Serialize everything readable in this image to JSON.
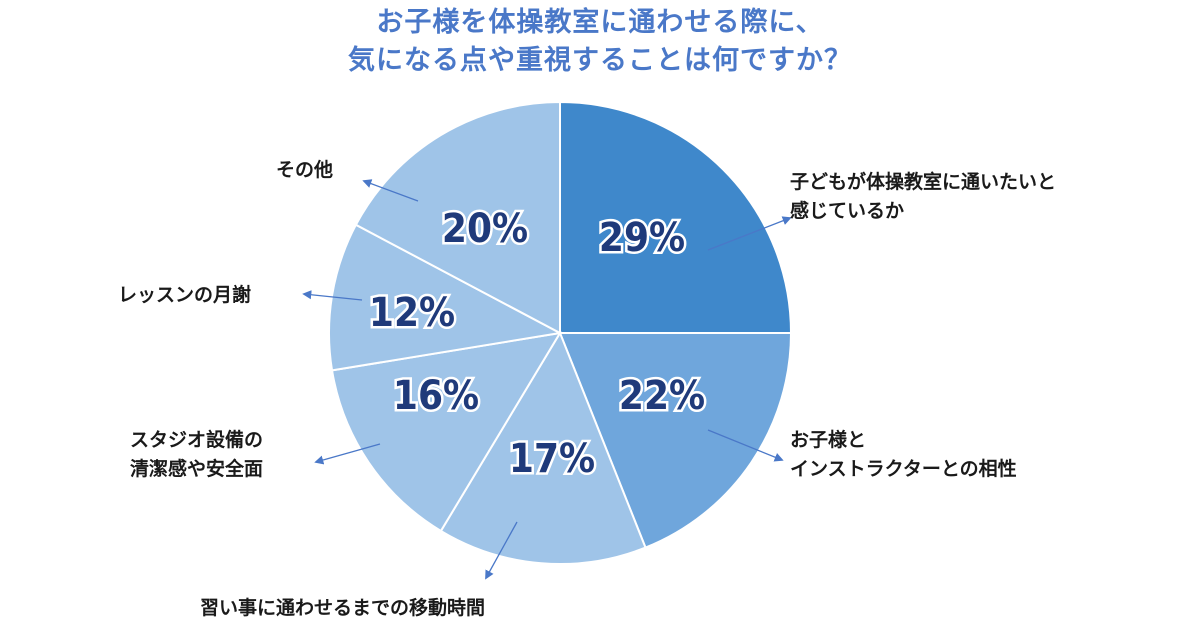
{
  "title": {
    "line1": "お子様を体操教室に通わせる際に、",
    "line2": "気になる点や重視することは何ですか？"
  },
  "labels": {
    "want": {
      "line1": "子どもが体操教室に通いたいと",
      "line2": "感じているか"
    },
    "compat": {
      "line1": "お子様と",
      "line2": "インストラクターとの相性"
    },
    "travel": "習い事に通わせるまでの移動時間",
    "facility": {
      "line1": "スタジオ設備の",
      "line2": "清潔感や安全面"
    },
    "fee": "レッスンの月謝",
    "other": "その他"
  },
  "chart_data": {
    "type": "pie",
    "title": "お子様を体操教室に通わせる際に、気になる点や重視することは何ですか？",
    "slices": [
      {
        "label": "子どもが体操教室に通いたいと感じているか",
        "value": 29,
        "display": "29%",
        "color": "#3f88cb"
      },
      {
        "label": "お子様とインストラクターとの相性",
        "value": 22,
        "display": "22%",
        "color": "#6fa6dc"
      },
      {
        "label": "習い事に通わせるまでの移動時間",
        "value": 17,
        "display": "17%",
        "color": "#9fc4e8"
      },
      {
        "label": "スタジオ設備の清潔感や安全面",
        "value": 16,
        "display": "16%",
        "color": "#9fc4e8"
      },
      {
        "label": "レッスンの月謝",
        "value": 12,
        "display": "12%",
        "color": "#9fc4e8"
      },
      {
        "label": "その他",
        "value": 20,
        "display": "20%",
        "color": "#9fc4e8"
      }
    ],
    "value_text_color": "#1f3a7a",
    "leader_color": "#4a78c8"
  }
}
